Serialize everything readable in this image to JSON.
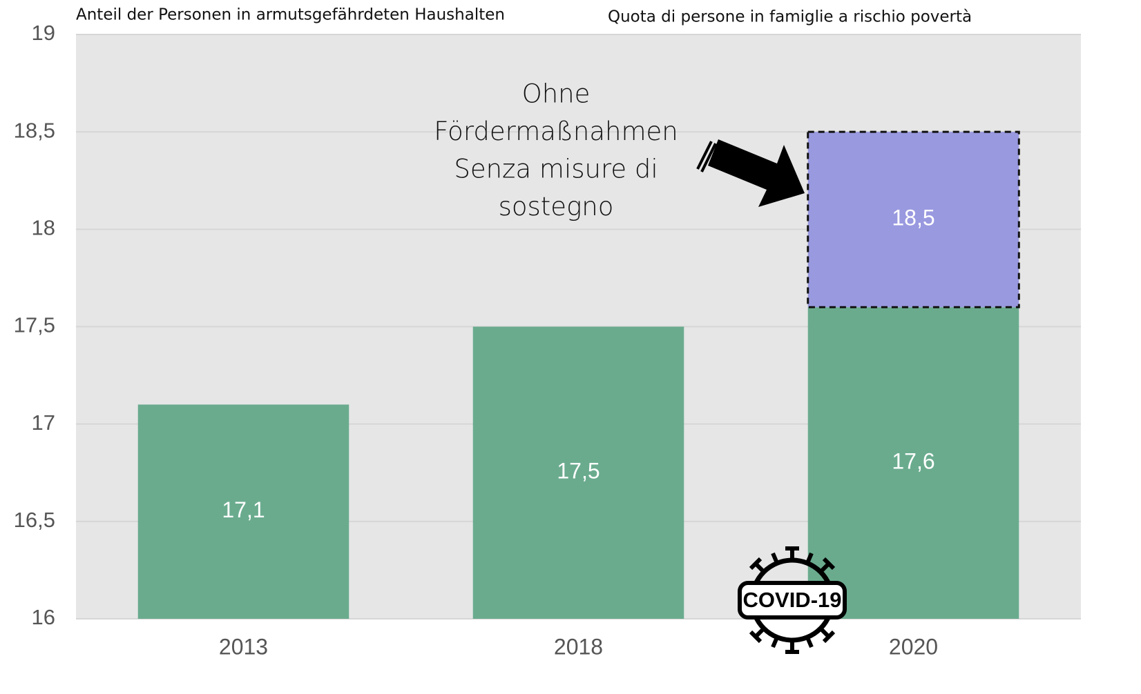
{
  "chart_data": {
    "type": "bar",
    "title": "Anteil der Personen in armutsgefährdeten Haushalten",
    "subtitle": "Quota di persone in famiglie a rischio povertà",
    "categories": [
      "2013",
      "2018",
      "2020"
    ],
    "series": [
      {
        "color": "#6aab8e",
        "values": [
          17.1,
          17.5,
          17.6
        ],
        "value_labels": [
          "17,1",
          "17,5",
          "17,6"
        ]
      },
      {
        "color": "#9999e0",
        "values": [
          null,
          null,
          18.5
        ],
        "value_labels": [
          null,
          null,
          "18,5"
        ]
      }
    ],
    "ylim": [
      16,
      19
    ],
    "yticks": [
      16,
      {
        "value": 16.5,
        "label": "16,5"
      },
      17,
      {
        "value": 17.5,
        "label": "17,5"
      },
      18,
      {
        "value": 18.5,
        "label": "18,5"
      },
      19
    ],
    "grid": true,
    "annotation": [
      "Ohne",
      "Fördermaßnahmen",
      "Senza misure di",
      "sostegno"
    ],
    "badge": "COVID-19"
  }
}
